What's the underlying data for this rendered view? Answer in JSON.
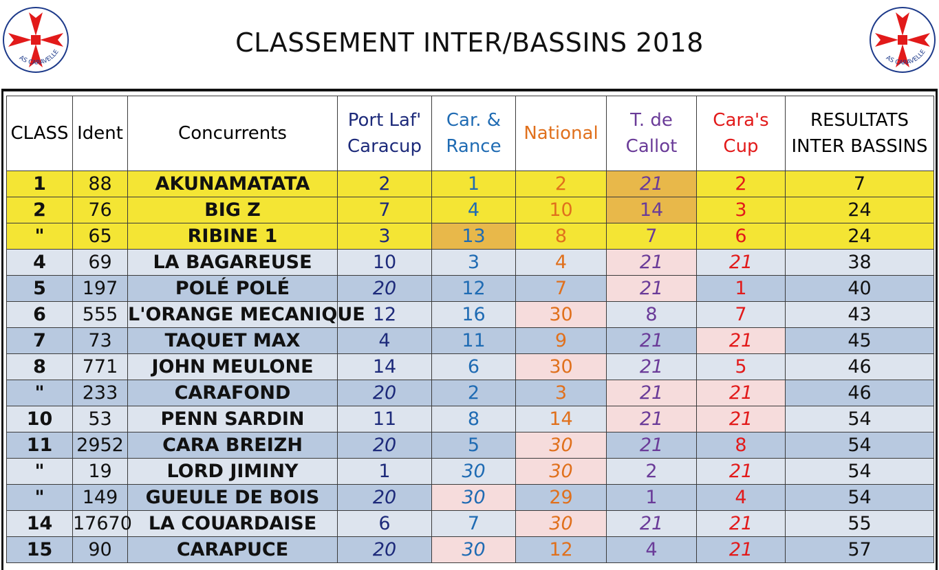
{
  "title": "CLASSEMENT INTER/BASSINS 2018",
  "logo_text": "AS CARAVELLE",
  "colors": {
    "cross": "#e21a1a",
    "logo_ring": "#1d3a8a",
    "port": "#1d2a7a",
    "car": "#1f6bb3",
    "national": "#e0701c",
    "tdc": "#6a3b98",
    "cup": "#e21a1a"
  },
  "headers": {
    "class": "CLASS",
    "ident": "Ident",
    "concurrents": "Concurrents",
    "port_line1": "Port Laf'",
    "port_line2": "Caracup",
    "car_line1": "Car. &",
    "car_line2": "Rance",
    "national": "National",
    "tdc_line1": "T. de",
    "tdc_line2": "Callot",
    "cup_line1": "Cara's",
    "cup_line2": "Cup",
    "res_line1": "RESULTATS",
    "res_line2": "INTER BASSINS"
  },
  "rows": [
    {
      "class": "1",
      "ident": "88",
      "name": "AKUNAMATATA",
      "port": "2",
      "car": "1",
      "nat": "2",
      "tdc": "21",
      "cup": "2",
      "result": "7"
    },
    {
      "class": "2",
      "ident": "76",
      "name": "BIG Z",
      "port": "7",
      "car": "4",
      "nat": "10",
      "tdc": "14",
      "cup": "3",
      "result": "24"
    },
    {
      "class": "\"",
      "ident": "65",
      "name": "RIBINE 1",
      "port": "3",
      "car": "13",
      "nat": "8",
      "tdc": "7",
      "cup": "6",
      "result": "24"
    },
    {
      "class": "4",
      "ident": "69",
      "name": "LA BAGAREUSE",
      "port": "10",
      "car": "3",
      "nat": "4",
      "tdc": "21",
      "cup": "21",
      "result": "38"
    },
    {
      "class": "5",
      "ident": "197",
      "name": "POLÉ POLÉ",
      "port": "20",
      "car": "12",
      "nat": "7",
      "tdc": "21",
      "cup": "1",
      "result": "40"
    },
    {
      "class": "6",
      "ident": "555",
      "name": "L'ORANGE MECANIQUE",
      "port": "12",
      "car": "16",
      "nat": "30",
      "tdc": "8",
      "cup": "7",
      "result": "43"
    },
    {
      "class": "7",
      "ident": "73",
      "name": "TAQUET MAX",
      "port": "4",
      "car": "11",
      "nat": "9",
      "tdc": "21",
      "cup": "21",
      "result": "45"
    },
    {
      "class": "8",
      "ident": "771",
      "name": "JOHN MEULONE",
      "port": "14",
      "car": "6",
      "nat": "30",
      "tdc": "21",
      "cup": "5",
      "result": "46"
    },
    {
      "class": "\"",
      "ident": "233",
      "name": "CARAFOND",
      "port": "20",
      "car": "2",
      "nat": "3",
      "tdc": "21",
      "cup": "21",
      "result": "46"
    },
    {
      "class": "10",
      "ident": "53",
      "name": "PENN SARDIN",
      "port": "11",
      "car": "8",
      "nat": "14",
      "tdc": "21",
      "cup": "21",
      "result": "54"
    },
    {
      "class": "11",
      "ident": "2952",
      "name": "CARA BREIZH",
      "port": "20",
      "car": "5",
      "nat": "30",
      "tdc": "21",
      "cup": "8",
      "result": "54"
    },
    {
      "class": "\"",
      "ident": "19",
      "name": "LORD JIMINY",
      "port": "1",
      "car": "30",
      "nat": "30",
      "tdc": "2",
      "cup": "21",
      "result": "54"
    },
    {
      "class": "\"",
      "ident": "149",
      "name": "GUEULE DE BOIS",
      "port": "20",
      "car": "30",
      "nat": "29",
      "tdc": "1",
      "cup": "4",
      "result": "54"
    },
    {
      "class": "14",
      "ident": "17670",
      "name": "LA COUARDAISE",
      "port": "6",
      "car": "7",
      "nat": "30",
      "tdc": "21",
      "cup": "21",
      "result": "55"
    },
    {
      "class": "15",
      "ident": "90",
      "name": "CARAPUCE",
      "port": "20",
      "car": "30",
      "nat": "12",
      "tdc": "4",
      "cup": "21",
      "result": "57"
    }
  ]
}
